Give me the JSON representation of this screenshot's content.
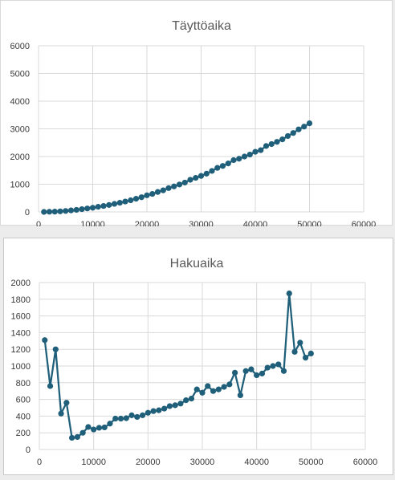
{
  "chart_data": [
    {
      "type": "line",
      "title": "Täyttöaika",
      "xlabel": "",
      "ylabel": "",
      "xlim": [
        0,
        60000
      ],
      "ylim": [
        0,
        6000
      ],
      "xticks": [
        0,
        10000,
        20000,
        30000,
        40000,
        50000,
        60000
      ],
      "yticks": [
        0,
        1000,
        2000,
        3000,
        4000,
        5000,
        6000
      ],
      "grid": true,
      "markers": true,
      "color": "#1f5f7a",
      "series": [
        {
          "x": [
            1000,
            2000,
            3000,
            4000,
            5000,
            6000,
            7000,
            8000,
            9000,
            10000,
            11000,
            12000,
            13000,
            14000,
            15000,
            16000,
            17000,
            18000,
            19000,
            20000,
            21000,
            22000,
            23000,
            24000,
            25000,
            26000,
            27000,
            28000,
            29000,
            30000,
            31000,
            32000,
            33000,
            34000,
            35000,
            36000,
            37000,
            38000,
            39000,
            40000,
            41000,
            42000,
            43000,
            44000,
            45000,
            46000,
            47000,
            48000,
            49000,
            50000
          ],
          "y": [
            0,
            5,
            10,
            20,
            35,
            55,
            75,
            100,
            125,
            150,
            185,
            215,
            250,
            290,
            330,
            375,
            420,
            475,
            530,
            600,
            650,
            720,
            780,
            860,
            920,
            990,
            1060,
            1160,
            1230,
            1300,
            1380,
            1480,
            1590,
            1660,
            1750,
            1870,
            1920,
            2000,
            2070,
            2170,
            2230,
            2380,
            2450,
            2530,
            2620,
            2740,
            2850,
            2980,
            3080,
            3200
          ]
        }
      ]
    },
    {
      "type": "line",
      "title": "Hakuaika",
      "xlabel": "",
      "ylabel": "",
      "xlim": [
        0,
        60000
      ],
      "ylim": [
        0,
        2000
      ],
      "xticks": [
        0,
        10000,
        20000,
        30000,
        40000,
        50000,
        60000
      ],
      "yticks": [
        0,
        200,
        400,
        600,
        800,
        1000,
        1200,
        1400,
        1600,
        1800,
        2000
      ],
      "grid": true,
      "markers": true,
      "color": "#1f5f7a",
      "series": [
        {
          "x": [
            1000,
            2000,
            3000,
            4000,
            5000,
            6000,
            7000,
            8000,
            9000,
            10000,
            11000,
            12000,
            13000,
            14000,
            15000,
            16000,
            17000,
            18000,
            19000,
            20000,
            21000,
            22000,
            23000,
            24000,
            25000,
            26000,
            27000,
            28000,
            29000,
            30000,
            31000,
            32000,
            33000,
            34000,
            35000,
            36000,
            37000,
            38000,
            39000,
            40000,
            41000,
            42000,
            43000,
            44000,
            45000,
            46000,
            47000,
            48000,
            49000,
            50000
          ],
          "y": [
            1310,
            760,
            1200,
            430,
            560,
            140,
            150,
            200,
            270,
            240,
            260,
            265,
            310,
            370,
            370,
            375,
            410,
            390,
            410,
            440,
            460,
            470,
            490,
            520,
            530,
            550,
            590,
            610,
            720,
            680,
            760,
            700,
            720,
            750,
            780,
            920,
            650,
            940,
            960,
            890,
            910,
            980,
            1000,
            1020,
            940,
            1870,
            1170,
            1280,
            1100,
            1150
          ]
        }
      ]
    }
  ]
}
